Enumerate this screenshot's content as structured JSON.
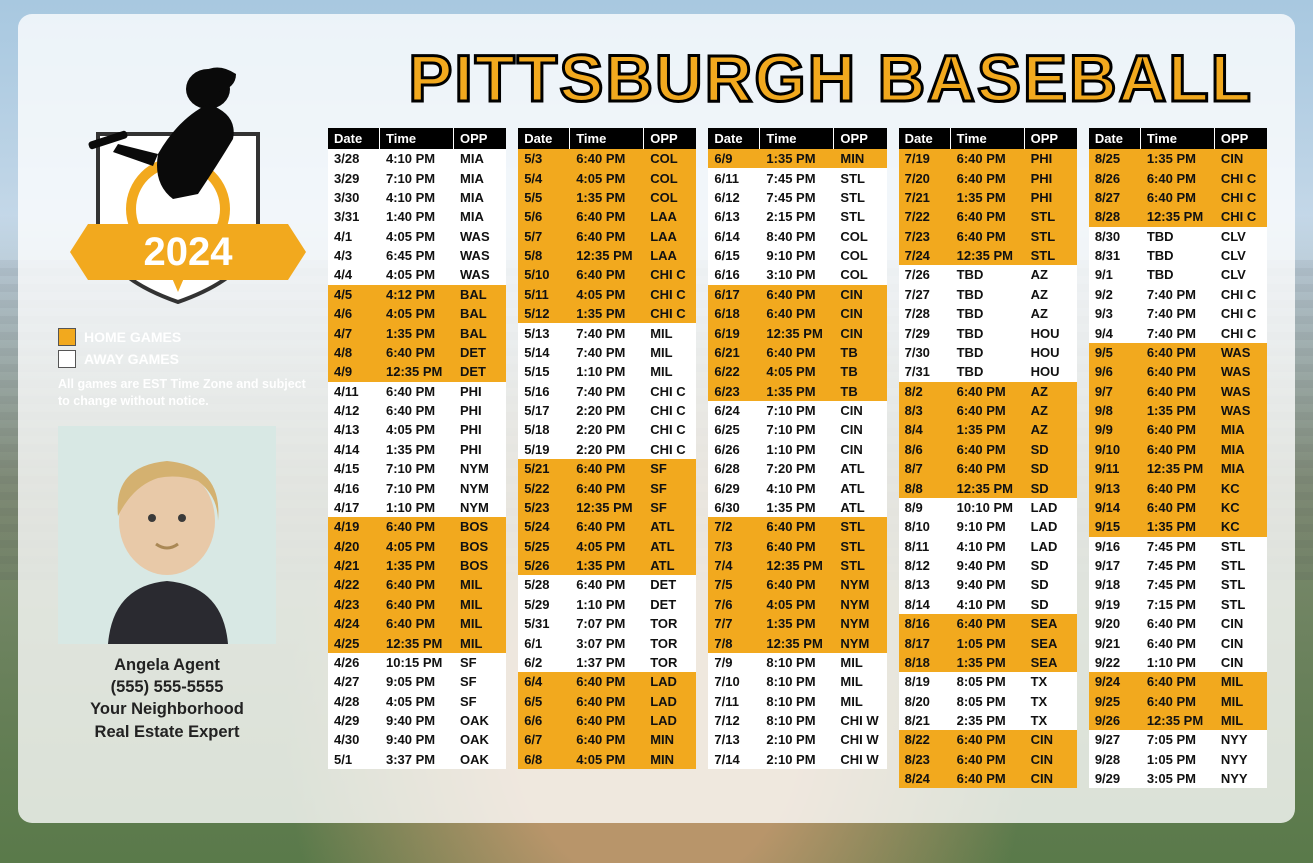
{
  "title": "PITTSBURGH BASEBALL",
  "year": "2024",
  "colors": {
    "accent": "#f2a91e",
    "header_bg": "#000000",
    "header_fg": "#ffffff",
    "home_row": "#f2a91e",
    "away_row": "#ffffff",
    "text": "#111111"
  },
  "legend": {
    "home": "HOME GAMES",
    "away": "AWAY GAMES",
    "note": "All games are EST Time Zone and subject to change without notice."
  },
  "agent": {
    "name": "Angela Agent",
    "phone": "(555) 555-5555",
    "tagline1": "Your Neighborhood",
    "tagline2": "Real Estate Expert"
  },
  "headers": {
    "date": "Date",
    "time": "Time",
    "opp": "OPP"
  },
  "columns": [
    [
      {
        "date": "3/28",
        "time": "4:10 PM",
        "opp": "MIA",
        "home": false
      },
      {
        "date": "3/29",
        "time": "7:10 PM",
        "opp": "MIA",
        "home": false
      },
      {
        "date": "3/30",
        "time": "4:10 PM",
        "opp": "MIA",
        "home": false
      },
      {
        "date": "3/31",
        "time": "1:40 PM",
        "opp": "MIA",
        "home": false
      },
      {
        "date": "4/1",
        "time": "4:05 PM",
        "opp": "WAS",
        "home": false
      },
      {
        "date": "4/3",
        "time": "6:45 PM",
        "opp": "WAS",
        "home": false
      },
      {
        "date": "4/4",
        "time": "4:05 PM",
        "opp": "WAS",
        "home": false
      },
      {
        "date": "4/5",
        "time": "4:12 PM",
        "opp": "BAL",
        "home": true
      },
      {
        "date": "4/6",
        "time": "4:05 PM",
        "opp": "BAL",
        "home": true
      },
      {
        "date": "4/7",
        "time": "1:35 PM",
        "opp": "BAL",
        "home": true
      },
      {
        "date": "4/8",
        "time": "6:40 PM",
        "opp": "DET",
        "home": true
      },
      {
        "date": "4/9",
        "time": "12:35 PM",
        "opp": "DET",
        "home": true
      },
      {
        "date": "4/11",
        "time": "6:40 PM",
        "opp": "PHI",
        "home": false
      },
      {
        "date": "4/12",
        "time": "6:40 PM",
        "opp": "PHI",
        "home": false
      },
      {
        "date": "4/13",
        "time": "4:05 PM",
        "opp": "PHI",
        "home": false
      },
      {
        "date": "4/14",
        "time": "1:35 PM",
        "opp": "PHI",
        "home": false
      },
      {
        "date": "4/15",
        "time": "7:10 PM",
        "opp": "NYM",
        "home": false
      },
      {
        "date": "4/16",
        "time": "7:10 PM",
        "opp": "NYM",
        "home": false
      },
      {
        "date": "4/17",
        "time": "1:10 PM",
        "opp": "NYM",
        "home": false
      },
      {
        "date": "4/19",
        "time": "6:40 PM",
        "opp": "BOS",
        "home": true
      },
      {
        "date": "4/20",
        "time": "4:05 PM",
        "opp": "BOS",
        "home": true
      },
      {
        "date": "4/21",
        "time": "1:35 PM",
        "opp": "BOS",
        "home": true
      },
      {
        "date": "4/22",
        "time": "6:40 PM",
        "opp": "MIL",
        "home": true
      },
      {
        "date": "4/23",
        "time": "6:40 PM",
        "opp": "MIL",
        "home": true
      },
      {
        "date": "4/24",
        "time": "6:40 PM",
        "opp": "MIL",
        "home": true
      },
      {
        "date": "4/25",
        "time": "12:35 PM",
        "opp": "MIL",
        "home": true
      },
      {
        "date": "4/26",
        "time": "10:15 PM",
        "opp": "SF",
        "home": false
      },
      {
        "date": "4/27",
        "time": "9:05 PM",
        "opp": "SF",
        "home": false
      },
      {
        "date": "4/28",
        "time": "4:05 PM",
        "opp": "SF",
        "home": false
      },
      {
        "date": "4/29",
        "time": "9:40 PM",
        "opp": "OAK",
        "home": false
      },
      {
        "date": "4/30",
        "time": "9:40 PM",
        "opp": "OAK",
        "home": false
      },
      {
        "date": "5/1",
        "time": "3:37 PM",
        "opp": "OAK",
        "home": false
      }
    ],
    [
      {
        "date": "5/3",
        "time": "6:40 PM",
        "opp": "COL",
        "home": true
      },
      {
        "date": "5/4",
        "time": "4:05 PM",
        "opp": "COL",
        "home": true
      },
      {
        "date": "5/5",
        "time": "1:35 PM",
        "opp": "COL",
        "home": true
      },
      {
        "date": "5/6",
        "time": "6:40 PM",
        "opp": "LAA",
        "home": true
      },
      {
        "date": "5/7",
        "time": "6:40 PM",
        "opp": "LAA",
        "home": true
      },
      {
        "date": "5/8",
        "time": "12:35 PM",
        "opp": "LAA",
        "home": true
      },
      {
        "date": "5/10",
        "time": "6:40 PM",
        "opp": "CHI C",
        "home": true
      },
      {
        "date": "5/11",
        "time": "4:05 PM",
        "opp": "CHI C",
        "home": true
      },
      {
        "date": "5/12",
        "time": "1:35 PM",
        "opp": "CHI C",
        "home": true
      },
      {
        "date": "5/13",
        "time": "7:40 PM",
        "opp": "MIL",
        "home": false
      },
      {
        "date": "5/14",
        "time": "7:40 PM",
        "opp": "MIL",
        "home": false
      },
      {
        "date": "5/15",
        "time": "1:10 PM",
        "opp": "MIL",
        "home": false
      },
      {
        "date": "5/16",
        "time": "7:40 PM",
        "opp": "CHI C",
        "home": false
      },
      {
        "date": "5/17",
        "time": "2:20 PM",
        "opp": "CHI C",
        "home": false
      },
      {
        "date": "5/18",
        "time": "2:20 PM",
        "opp": "CHI C",
        "home": false
      },
      {
        "date": "5/19",
        "time": "2:20 PM",
        "opp": "CHI C",
        "home": false
      },
      {
        "date": "5/21",
        "time": "6:40 PM",
        "opp": "SF",
        "home": true
      },
      {
        "date": "5/22",
        "time": "6:40 PM",
        "opp": "SF",
        "home": true
      },
      {
        "date": "5/23",
        "time": "12:35 PM",
        "opp": "SF",
        "home": true
      },
      {
        "date": "5/24",
        "time": "6:40 PM",
        "opp": "ATL",
        "home": true
      },
      {
        "date": "5/25",
        "time": "4:05 PM",
        "opp": "ATL",
        "home": true
      },
      {
        "date": "5/26",
        "time": "1:35 PM",
        "opp": "ATL",
        "home": true
      },
      {
        "date": "5/28",
        "time": "6:40 PM",
        "opp": "DET",
        "home": false
      },
      {
        "date": "5/29",
        "time": "1:10 PM",
        "opp": "DET",
        "home": false
      },
      {
        "date": "5/31",
        "time": "7:07 PM",
        "opp": "TOR",
        "home": false
      },
      {
        "date": "6/1",
        "time": "3:07 PM",
        "opp": "TOR",
        "home": false
      },
      {
        "date": "6/2",
        "time": "1:37 PM",
        "opp": "TOR",
        "home": false
      },
      {
        "date": "6/4",
        "time": "6:40 PM",
        "opp": "LAD",
        "home": true
      },
      {
        "date": "6/5",
        "time": "6:40 PM",
        "opp": "LAD",
        "home": true
      },
      {
        "date": "6/6",
        "time": "6:40 PM",
        "opp": "LAD",
        "home": true
      },
      {
        "date": "6/7",
        "time": "6:40 PM",
        "opp": "MIN",
        "home": true
      },
      {
        "date": "6/8",
        "time": "4:05 PM",
        "opp": "MIN",
        "home": true
      }
    ],
    [
      {
        "date": "6/9",
        "time": "1:35 PM",
        "opp": "MIN",
        "home": true
      },
      {
        "date": "6/11",
        "time": "7:45 PM",
        "opp": "STL",
        "home": false
      },
      {
        "date": "6/12",
        "time": "7:45 PM",
        "opp": "STL",
        "home": false
      },
      {
        "date": "6/13",
        "time": "2:15 PM",
        "opp": "STL",
        "home": false
      },
      {
        "date": "6/14",
        "time": "8:40 PM",
        "opp": "COL",
        "home": false
      },
      {
        "date": "6/15",
        "time": "9:10 PM",
        "opp": "COL",
        "home": false
      },
      {
        "date": "6/16",
        "time": "3:10 PM",
        "opp": "COL",
        "home": false
      },
      {
        "date": "6/17",
        "time": "6:40 PM",
        "opp": "CIN",
        "home": true
      },
      {
        "date": "6/18",
        "time": "6:40 PM",
        "opp": "CIN",
        "home": true
      },
      {
        "date": "6/19",
        "time": "12:35 PM",
        "opp": "CIN",
        "home": true
      },
      {
        "date": "6/21",
        "time": "6:40 PM",
        "opp": "TB",
        "home": true
      },
      {
        "date": "6/22",
        "time": "4:05 PM",
        "opp": "TB",
        "home": true
      },
      {
        "date": "6/23",
        "time": "1:35 PM",
        "opp": "TB",
        "home": true
      },
      {
        "date": "6/24",
        "time": "7:10 PM",
        "opp": "CIN",
        "home": false
      },
      {
        "date": "6/25",
        "time": "7:10 PM",
        "opp": "CIN",
        "home": false
      },
      {
        "date": "6/26",
        "time": "1:10 PM",
        "opp": "CIN",
        "home": false
      },
      {
        "date": "6/28",
        "time": "7:20 PM",
        "opp": "ATL",
        "home": false
      },
      {
        "date": "6/29",
        "time": "4:10 PM",
        "opp": "ATL",
        "home": false
      },
      {
        "date": "6/30",
        "time": "1:35 PM",
        "opp": "ATL",
        "home": false
      },
      {
        "date": "7/2",
        "time": "6:40 PM",
        "opp": "STL",
        "home": true
      },
      {
        "date": "7/3",
        "time": "6:40 PM",
        "opp": "STL",
        "home": true
      },
      {
        "date": "7/4",
        "time": "12:35 PM",
        "opp": "STL",
        "home": true
      },
      {
        "date": "7/5",
        "time": "6:40 PM",
        "opp": "NYM",
        "home": true
      },
      {
        "date": "7/6",
        "time": "4:05 PM",
        "opp": "NYM",
        "home": true
      },
      {
        "date": "7/7",
        "time": "1:35 PM",
        "opp": "NYM",
        "home": true
      },
      {
        "date": "7/8",
        "time": "12:35 PM",
        "opp": "NYM",
        "home": true
      },
      {
        "date": "7/9",
        "time": "8:10 PM",
        "opp": "MIL",
        "home": false
      },
      {
        "date": "7/10",
        "time": "8:10 PM",
        "opp": "MIL",
        "home": false
      },
      {
        "date": "7/11",
        "time": "8:10 PM",
        "opp": "MIL",
        "home": false
      },
      {
        "date": "7/12",
        "time": "8:10 PM",
        "opp": "CHI W",
        "home": false
      },
      {
        "date": "7/13",
        "time": "2:10 PM",
        "opp": "CHI W",
        "home": false
      },
      {
        "date": "7/14",
        "time": "2:10 PM",
        "opp": "CHI W",
        "home": false
      }
    ],
    [
      {
        "date": "7/19",
        "time": "6:40 PM",
        "opp": "PHI",
        "home": true
      },
      {
        "date": "7/20",
        "time": "6:40 PM",
        "opp": "PHI",
        "home": true
      },
      {
        "date": "7/21",
        "time": "1:35 PM",
        "opp": "PHI",
        "home": true
      },
      {
        "date": "7/22",
        "time": "6:40 PM",
        "opp": "STL",
        "home": true
      },
      {
        "date": "7/23",
        "time": "6:40 PM",
        "opp": "STL",
        "home": true
      },
      {
        "date": "7/24",
        "time": "12:35 PM",
        "opp": "STL",
        "home": true
      },
      {
        "date": "7/26",
        "time": "TBD",
        "opp": "AZ",
        "home": false
      },
      {
        "date": "7/27",
        "time": "TBD",
        "opp": "AZ",
        "home": false
      },
      {
        "date": "7/28",
        "time": "TBD",
        "opp": "AZ",
        "home": false
      },
      {
        "date": "7/29",
        "time": "TBD",
        "opp": "HOU",
        "home": false
      },
      {
        "date": "7/30",
        "time": "TBD",
        "opp": "HOU",
        "home": false
      },
      {
        "date": "7/31",
        "time": "TBD",
        "opp": "HOU",
        "home": false
      },
      {
        "date": "8/2",
        "time": "6:40 PM",
        "opp": "AZ",
        "home": true
      },
      {
        "date": "8/3",
        "time": "6:40 PM",
        "opp": "AZ",
        "home": true
      },
      {
        "date": "8/4",
        "time": "1:35 PM",
        "opp": "AZ",
        "home": true
      },
      {
        "date": "8/6",
        "time": "6:40 PM",
        "opp": "SD",
        "home": true
      },
      {
        "date": "8/7",
        "time": "6:40 PM",
        "opp": "SD",
        "home": true
      },
      {
        "date": "8/8",
        "time": "12:35 PM",
        "opp": "SD",
        "home": true
      },
      {
        "date": "8/9",
        "time": "10:10 PM",
        "opp": "LAD",
        "home": false
      },
      {
        "date": "8/10",
        "time": "9:10 PM",
        "opp": "LAD",
        "home": false
      },
      {
        "date": "8/11",
        "time": "4:10 PM",
        "opp": "LAD",
        "home": false
      },
      {
        "date": "8/12",
        "time": "9:40 PM",
        "opp": "SD",
        "home": false
      },
      {
        "date": "8/13",
        "time": "9:40 PM",
        "opp": "SD",
        "home": false
      },
      {
        "date": "8/14",
        "time": "4:10 PM",
        "opp": "SD",
        "home": false
      },
      {
        "date": "8/16",
        "time": "6:40 PM",
        "opp": "SEA",
        "home": true
      },
      {
        "date": "8/17",
        "time": "1:05 PM",
        "opp": "SEA",
        "home": true
      },
      {
        "date": "8/18",
        "time": "1:35 PM",
        "opp": "SEA",
        "home": true
      },
      {
        "date": "8/19",
        "time": "8:05 PM",
        "opp": "TX",
        "home": false
      },
      {
        "date": "8/20",
        "time": "8:05 PM",
        "opp": "TX",
        "home": false
      },
      {
        "date": "8/21",
        "time": "2:35 PM",
        "opp": "TX",
        "home": false
      },
      {
        "date": "8/22",
        "time": "6:40 PM",
        "opp": "CIN",
        "home": true
      },
      {
        "date": "8/23",
        "time": "6:40 PM",
        "opp": "CIN",
        "home": true
      },
      {
        "date": "8/24",
        "time": "6:40 PM",
        "opp": "CIN",
        "home": true
      }
    ],
    [
      {
        "date": "8/25",
        "time": "1:35 PM",
        "opp": "CIN",
        "home": true
      },
      {
        "date": "8/26",
        "time": "6:40 PM",
        "opp": "CHI C",
        "home": true
      },
      {
        "date": "8/27",
        "time": "6:40 PM",
        "opp": "CHI C",
        "home": true
      },
      {
        "date": "8/28",
        "time": "12:35 PM",
        "opp": "CHI C",
        "home": true
      },
      {
        "date": "8/30",
        "time": "TBD",
        "opp": "CLV",
        "home": false
      },
      {
        "date": "8/31",
        "time": "TBD",
        "opp": "CLV",
        "home": false
      },
      {
        "date": "9/1",
        "time": "TBD",
        "opp": "CLV",
        "home": false
      },
      {
        "date": "9/2",
        "time": "7:40 PM",
        "opp": "CHI C",
        "home": false
      },
      {
        "date": "9/3",
        "time": "7:40 PM",
        "opp": "CHI C",
        "home": false
      },
      {
        "date": "9/4",
        "time": "7:40 PM",
        "opp": "CHI C",
        "home": false
      },
      {
        "date": "9/5",
        "time": "6:40 PM",
        "opp": "WAS",
        "home": true
      },
      {
        "date": "9/6",
        "time": "6:40 PM",
        "opp": "WAS",
        "home": true
      },
      {
        "date": "9/7",
        "time": "6:40 PM",
        "opp": "WAS",
        "home": true
      },
      {
        "date": "9/8",
        "time": "1:35 PM",
        "opp": "WAS",
        "home": true
      },
      {
        "date": "9/9",
        "time": "6:40 PM",
        "opp": "MIA",
        "home": true
      },
      {
        "date": "9/10",
        "time": "6:40 PM",
        "opp": "MIA",
        "home": true
      },
      {
        "date": "9/11",
        "time": "12:35 PM",
        "opp": "MIA",
        "home": true
      },
      {
        "date": "9/13",
        "time": "6:40 PM",
        "opp": "KC",
        "home": true
      },
      {
        "date": "9/14",
        "time": "6:40 PM",
        "opp": "KC",
        "home": true
      },
      {
        "date": "9/15",
        "time": "1:35 PM",
        "opp": "KC",
        "home": true
      },
      {
        "date": "9/16",
        "time": "7:45 PM",
        "opp": "STL",
        "home": false
      },
      {
        "date": "9/17",
        "time": "7:45 PM",
        "opp": "STL",
        "home": false
      },
      {
        "date": "9/18",
        "time": "7:45 PM",
        "opp": "STL",
        "home": false
      },
      {
        "date": "9/19",
        "time": "7:15 PM",
        "opp": "STL",
        "home": false
      },
      {
        "date": "9/20",
        "time": "6:40 PM",
        "opp": "CIN",
        "home": false
      },
      {
        "date": "9/21",
        "time": "6:40 PM",
        "opp": "CIN",
        "home": false
      },
      {
        "date": "9/22",
        "time": "1:10 PM",
        "opp": "CIN",
        "home": false
      },
      {
        "date": "9/24",
        "time": "6:40 PM",
        "opp": "MIL",
        "home": true
      },
      {
        "date": "9/25",
        "time": "6:40 PM",
        "opp": "MIL",
        "home": true
      },
      {
        "date": "9/26",
        "time": "12:35 PM",
        "opp": "MIL",
        "home": true
      },
      {
        "date": "9/27",
        "time": "7:05 PM",
        "opp": "NYY",
        "home": false
      },
      {
        "date": "9/28",
        "time": "1:05 PM",
        "opp": "NYY",
        "home": false
      },
      {
        "date": "9/29",
        "time": "3:05 PM",
        "opp": "NYY",
        "home": false
      }
    ]
  ]
}
